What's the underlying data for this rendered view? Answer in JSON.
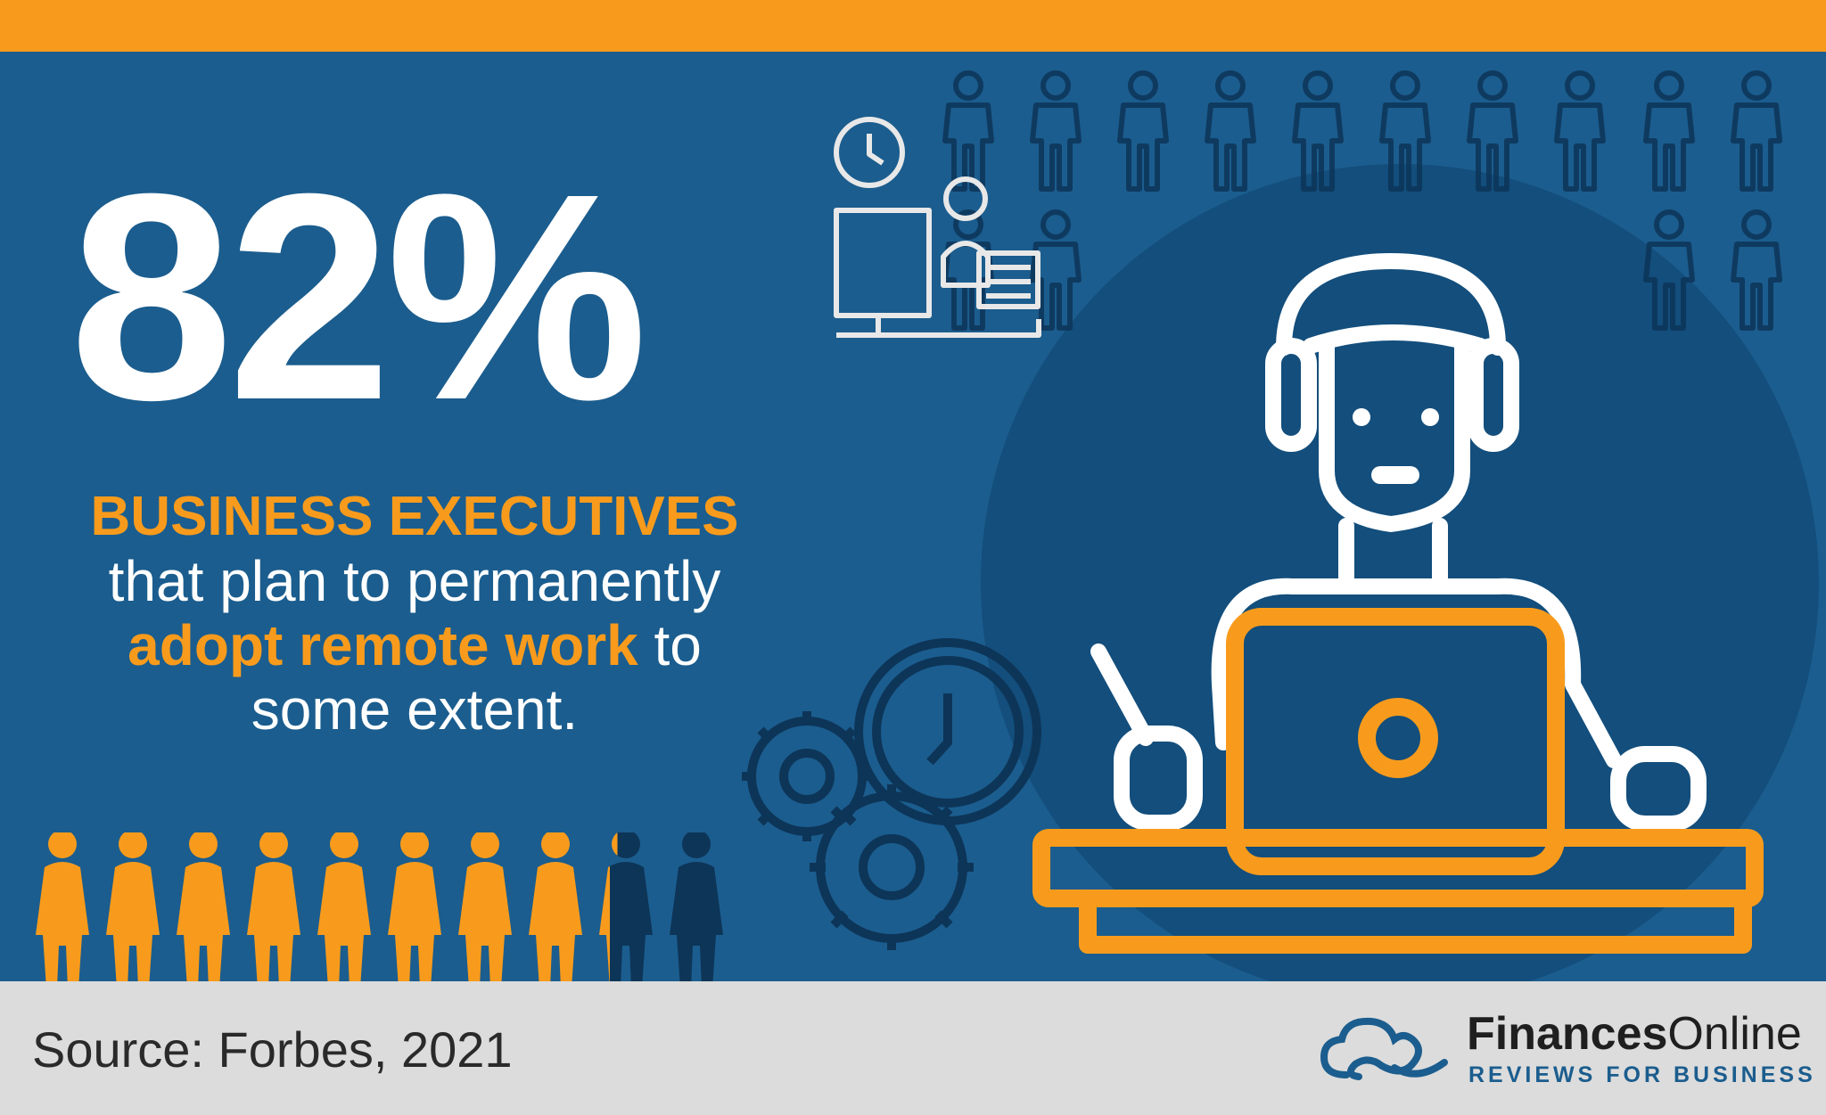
{
  "stat": {
    "value": "82%",
    "fraction": 0.82
  },
  "headline": {
    "accent": "BUSINESS EXECUTIVES",
    "line2": "that plan to permanently",
    "line3_highlight": "adopt remote work",
    "line3_rest": " to",
    "line4": "some extent."
  },
  "people_row": {
    "total": 10,
    "highlighted": 8.2
  },
  "footer": {
    "source": "Source: Forbes, 2021"
  },
  "logo": {
    "brand_bold": "Finances",
    "brand_regular": "Online",
    "tagline": "REVIEWS FOR BUSINESS"
  },
  "colors": {
    "orange": "#f89b1c",
    "blue": "#1b5d8e",
    "dark_blue": "#134e7c",
    "navy": "#0d3558",
    "white": "#ffffff",
    "footer_gray": "#dcdcdc"
  },
  "icons": [
    "person-icon",
    "clock-icon",
    "workstation-icon",
    "gears-icon",
    "headset-worker-icon",
    "laptop-icon",
    "cloud-logo-icon"
  ]
}
